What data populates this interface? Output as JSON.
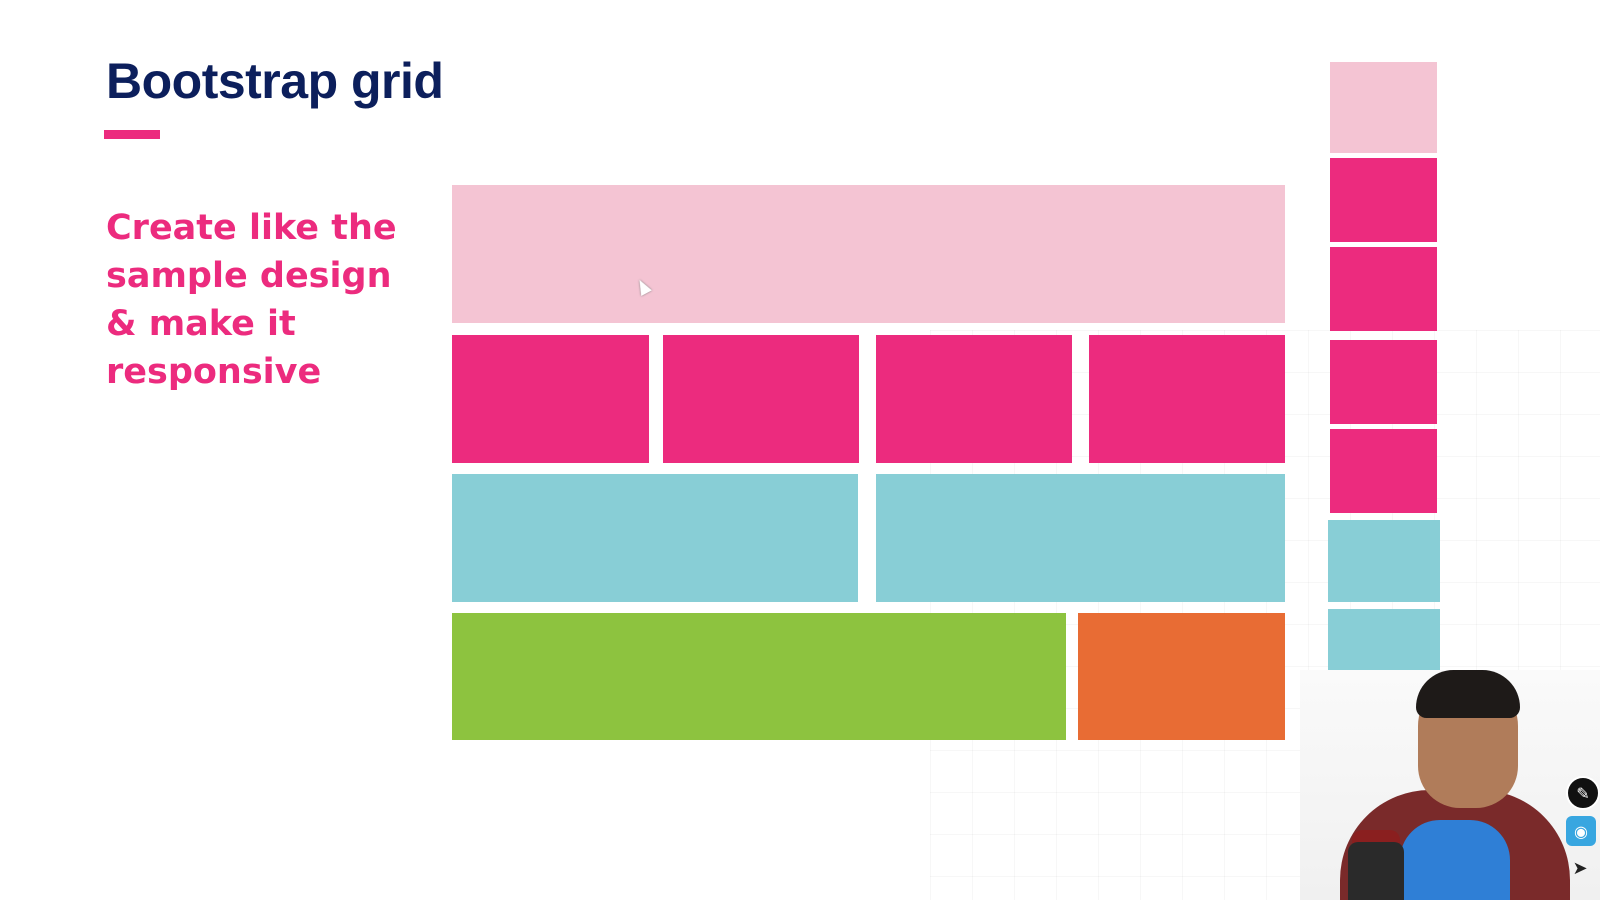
{
  "slide": {
    "title": "Bootstrap grid",
    "instructions": [
      "Create like the",
      "sample design",
      "& make it",
      "responsive"
    ]
  },
  "colors": {
    "title": "#0c1f5c",
    "accent": "#ec2b7e",
    "pink_light": "#f4c4d3",
    "pink": "#ec2b7e",
    "teal": "#88ced6",
    "green": "#8dc33f",
    "orange": "#e86c34"
  },
  "icons": {
    "pen": "pen-tool-icon",
    "eye": "eye-icon",
    "pointer": "pointer-icon"
  }
}
